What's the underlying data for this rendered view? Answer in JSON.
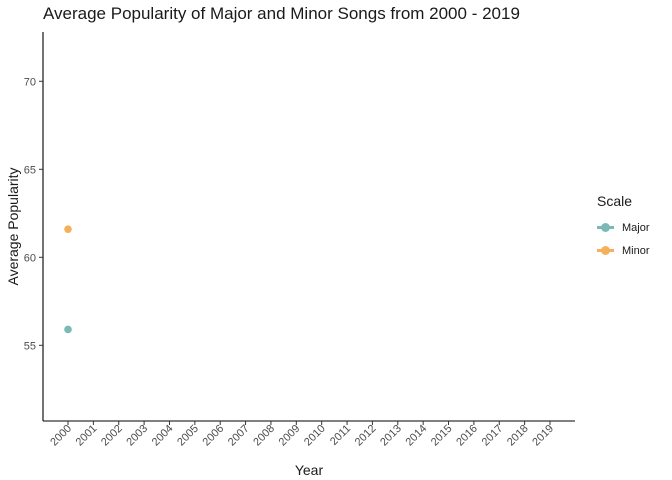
{
  "chart_data": {
    "type": "line",
    "title": "Average Popularity of Major and Minor Songs from 2000 - 2019",
    "xlabel": "Year",
    "ylabel": "Average Popularity",
    "categories": [
      "2000",
      "2001",
      "2002",
      "2003",
      "2004",
      "2005",
      "2006",
      "2007",
      "2008",
      "2009",
      "2010",
      "2011",
      "2012",
      "2013",
      "2014",
      "2015",
      "2016",
      "2017",
      "2018",
      "2019"
    ],
    "ylim": [
      50.7,
      72.8
    ],
    "yticks": [
      55,
      60,
      65,
      70
    ],
    "grid": false,
    "legend": {
      "title": "Scale",
      "position": "right"
    },
    "series": [
      {
        "name": "Major",
        "color": "#7bb8b6",
        "points": [
          {
            "x": "2000",
            "y": 55.9
          }
        ]
      },
      {
        "name": "Minor",
        "color": "#f4b05a",
        "points": [
          {
            "x": "2000",
            "y": 61.6
          }
        ]
      }
    ]
  }
}
